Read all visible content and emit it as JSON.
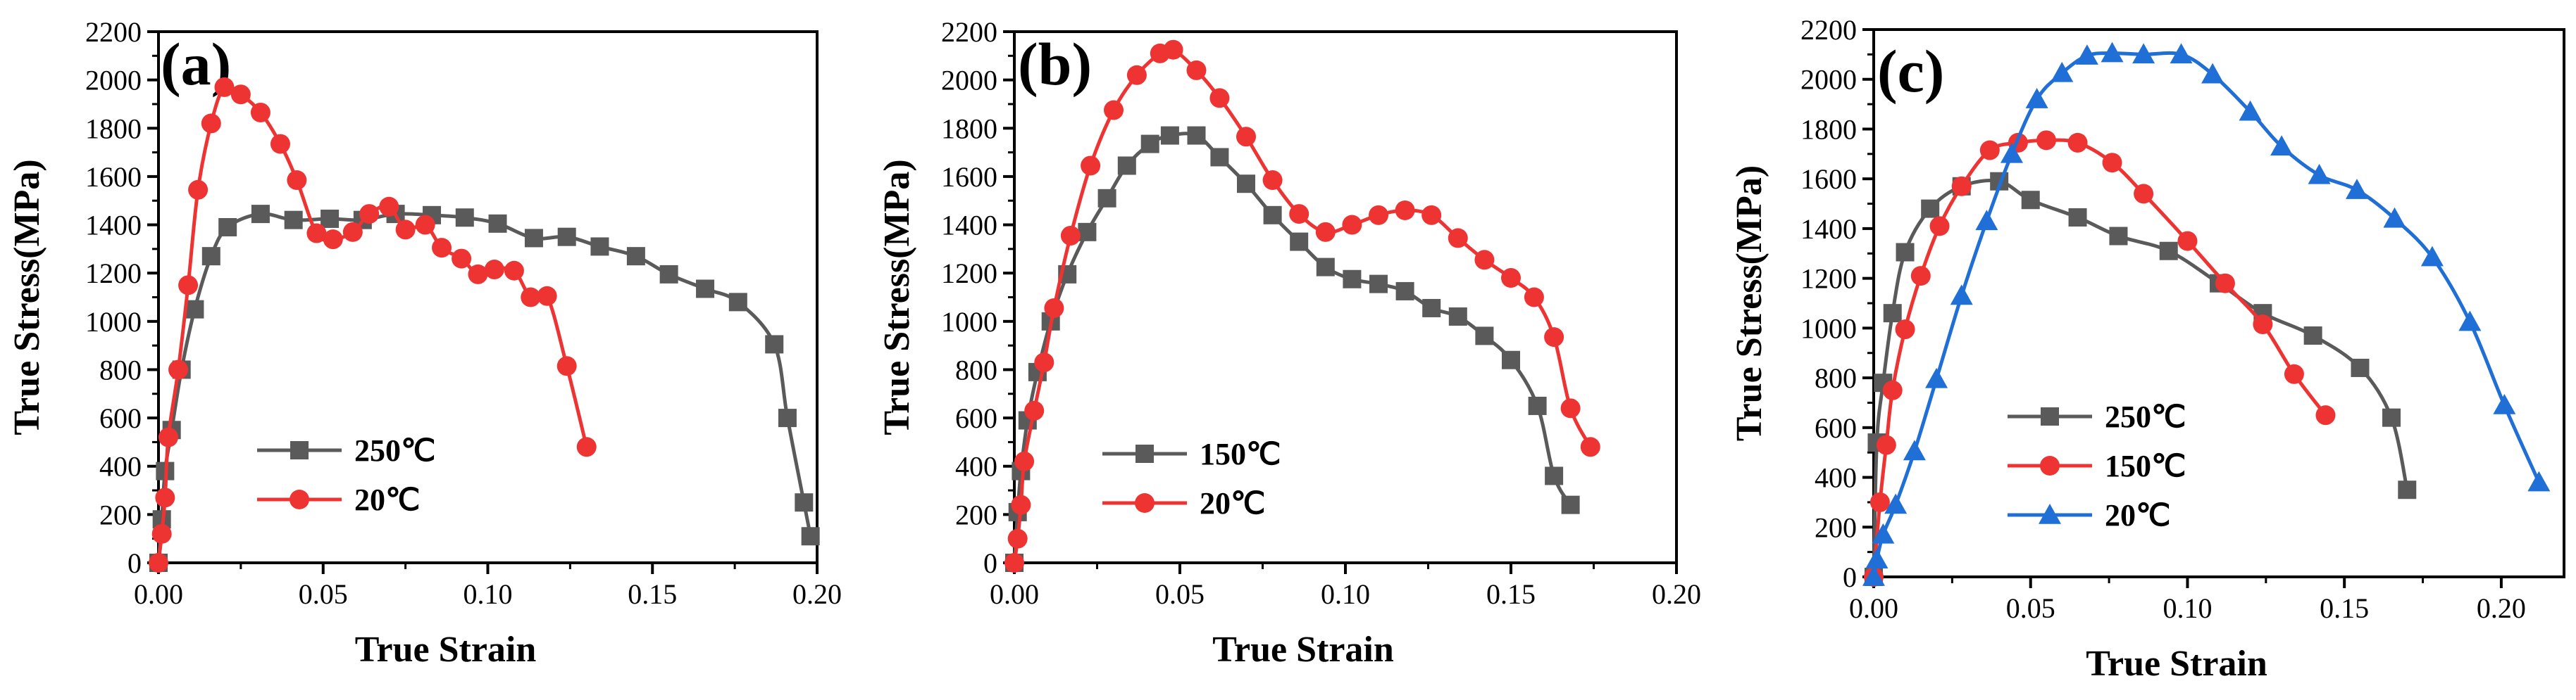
{
  "colors": {
    "gray": "#5a5a5a",
    "red": "#ee3333",
    "blue": "#1f6fd6"
  },
  "chart_data": [
    {
      "type": "line",
      "panel_label": "(a)",
      "xlabel": "True Strain",
      "ylabel": "True Stress(MPa)",
      "xlim": [
        0,
        0.2
      ],
      "ylim": [
        0,
        2200
      ],
      "xticks": [
        "0.00",
        "0.05",
        "0.10",
        "0.15",
        "0.20"
      ],
      "yticks": [
        "0",
        "200",
        "400",
        "600",
        "800",
        "1000",
        "1200",
        "1400",
        "1600",
        "1800",
        "2000",
        "2200"
      ],
      "legend": [
        "250℃",
        "20℃"
      ],
      "series": [
        {
          "name": "250℃",
          "color": "#5a5a5a",
          "marker": "square",
          "x": [
            0.0,
            0.001,
            0.002,
            0.004,
            0.007,
            0.011,
            0.016,
            0.021,
            0.031,
            0.041,
            0.052,
            0.062,
            0.072,
            0.083,
            0.093,
            0.103,
            0.114,
            0.124,
            0.134,
            0.145,
            0.155,
            0.166,
            0.176,
            0.187,
            0.191,
            0.196,
            0.198
          ],
          "y": [
            0,
            180,
            380,
            550,
            800,
            1050,
            1270,
            1390,
            1445,
            1420,
            1425,
            1420,
            1445,
            1440,
            1430,
            1405,
            1345,
            1350,
            1310,
            1270,
            1195,
            1135,
            1080,
            905,
            600,
            250,
            110
          ]
        },
        {
          "name": "20℃",
          "color": "#ee3333",
          "marker": "circle",
          "x": [
            0.0,
            0.001,
            0.002,
            0.003,
            0.006,
            0.009,
            0.012,
            0.016,
            0.02,
            0.025,
            0.031,
            0.037,
            0.042,
            0.048,
            0.053,
            0.059,
            0.064,
            0.07,
            0.075,
            0.081,
            0.086,
            0.092,
            0.097,
            0.102,
            0.108,
            0.113,
            0.118,
            0.124,
            0.13
          ],
          "y": [
            0,
            120,
            270,
            520,
            800,
            1150,
            1545,
            1820,
            1970,
            1940,
            1865,
            1735,
            1585,
            1365,
            1340,
            1370,
            1445,
            1475,
            1380,
            1400,
            1305,
            1260,
            1195,
            1215,
            1210,
            1100,
            1105,
            815,
            480
          ]
        }
      ]
    },
    {
      "type": "line",
      "panel_label": "(b)",
      "xlabel": "True Strain",
      "ylabel": "True Stress(MPa)",
      "xlim": [
        0,
        0.2
      ],
      "ylim": [
        0,
        2200
      ],
      "xticks": [
        "0.00",
        "0.05",
        "0.10",
        "0.15",
        "0.20"
      ],
      "yticks": [
        "0",
        "200",
        "400",
        "600",
        "800",
        "1000",
        "1200",
        "1400",
        "1600",
        "1800",
        "2000",
        "2200"
      ],
      "legend": [
        "150℃",
        "20℃"
      ],
      "series": [
        {
          "name": "150℃",
          "color": "#5a5a5a",
          "marker": "square",
          "x": [
            0.0,
            0.001,
            0.002,
            0.004,
            0.007,
            0.011,
            0.016,
            0.022,
            0.028,
            0.034,
            0.041,
            0.047,
            0.055,
            0.062,
            0.07,
            0.078,
            0.086,
            0.094,
            0.102,
            0.11,
            0.118,
            0.126,
            0.134,
            0.142,
            0.15,
            0.158,
            0.163,
            0.168
          ],
          "y": [
            0,
            210,
            380,
            590,
            790,
            1000,
            1195,
            1370,
            1510,
            1645,
            1735,
            1770,
            1770,
            1680,
            1570,
            1440,
            1330,
            1225,
            1175,
            1155,
            1125,
            1055,
            1020,
            940,
            840,
            650,
            360,
            240
          ]
        },
        {
          "name": "20℃",
          "color": "#ee3333",
          "marker": "circle",
          "x": [
            0.0,
            0.001,
            0.002,
            0.003,
            0.006,
            0.009,
            0.012,
            0.017,
            0.023,
            0.03,
            0.037,
            0.044,
            0.048,
            0.055,
            0.062,
            0.07,
            0.078,
            0.086,
            0.094,
            0.102,
            0.11,
            0.118,
            0.126,
            0.134,
            0.142,
            0.15,
            0.157,
            0.163,
            0.168,
            0.174
          ],
          "y": [
            0,
            100,
            240,
            420,
            630,
            830,
            1055,
            1355,
            1645,
            1875,
            2020,
            2110,
            2125,
            2040,
            1925,
            1765,
            1585,
            1445,
            1370,
            1400,
            1440,
            1460,
            1440,
            1345,
            1255,
            1180,
            1100,
            935,
            640,
            480
          ]
        }
      ]
    },
    {
      "type": "line",
      "panel_label": "(c)",
      "xlabel": "True Strain",
      "ylabel": "True Stress(MPa)",
      "xlim": [
        0,
        0.22
      ],
      "ylim": [
        0,
        2200
      ],
      "xticks": [
        "0.00",
        "0.05",
        "0.10",
        "0.15",
        "0.20"
      ],
      "yticks": [
        "0",
        "200",
        "400",
        "600",
        "800",
        "1000",
        "1200",
        "1400",
        "1600",
        "1800",
        "2000",
        "2200"
      ],
      "legend": [
        "250℃",
        "150℃",
        "20℃"
      ],
      "series": [
        {
          "name": "250℃",
          "color": "#5a5a5a",
          "marker": "square",
          "x": [
            0.0,
            0.001,
            0.003,
            0.006,
            0.01,
            0.018,
            0.028,
            0.04,
            0.05,
            0.065,
            0.078,
            0.094,
            0.11,
            0.124,
            0.14,
            0.155,
            0.165,
            0.17
          ],
          "y": [
            0,
            540,
            780,
            1060,
            1305,
            1480,
            1570,
            1590,
            1515,
            1445,
            1370,
            1310,
            1180,
            1060,
            970,
            840,
            640,
            350
          ]
        },
        {
          "name": "150℃",
          "color": "#ee3333",
          "marker": "circle",
          "x": [
            0.0,
            0.002,
            0.004,
            0.006,
            0.01,
            0.015,
            0.021,
            0.028,
            0.037,
            0.046,
            0.055,
            0.065,
            0.076,
            0.086,
            0.1,
            0.112,
            0.124,
            0.134,
            0.144
          ],
          "y": [
            0,
            300,
            530,
            750,
            995,
            1210,
            1410,
            1570,
            1715,
            1745,
            1755,
            1745,
            1665,
            1540,
            1350,
            1180,
            1015,
            815,
            650
          ]
        },
        {
          "name": "20℃",
          "color": "#1f6fd6",
          "marker": "triangle",
          "x": [
            0.0,
            0.001,
            0.003,
            0.007,
            0.013,
            0.02,
            0.028,
            0.036,
            0.044,
            0.052,
            0.06,
            0.068,
            0.076,
            0.086,
            0.098,
            0.108,
            0.12,
            0.13,
            0.142,
            0.154,
            0.166,
            0.178,
            0.19,
            0.201,
            0.212
          ],
          "y": [
            0,
            70,
            170,
            290,
            505,
            795,
            1130,
            1430,
            1700,
            1920,
            2025,
            2095,
            2105,
            2100,
            2100,
            2020,
            1870,
            1730,
            1615,
            1555,
            1440,
            1285,
            1025,
            690,
            380
          ]
        }
      ]
    }
  ]
}
